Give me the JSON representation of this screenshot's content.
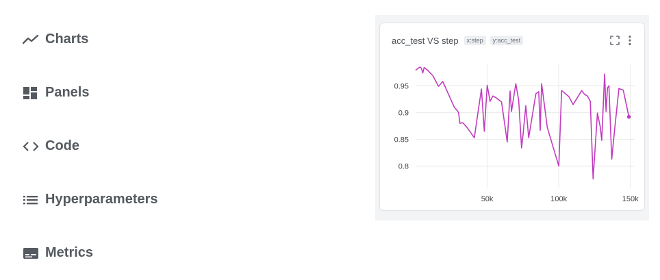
{
  "nav": {
    "items": [
      {
        "label": "Charts",
        "icon": "line-chart-icon"
      },
      {
        "label": "Panels",
        "icon": "dashboard-icon"
      },
      {
        "label": "Code",
        "icon": "code-icon"
      },
      {
        "label": "Hyperparameters",
        "icon": "list-icon"
      },
      {
        "label": "Metrics",
        "icon": "metrics-icon"
      }
    ]
  },
  "panel": {
    "title": "acc_test VS step",
    "badge_x": "x:step",
    "badge_y": "y:acc_test",
    "actions": [
      "fullscreen-icon",
      "more-vert-icon"
    ]
  },
  "colors": {
    "line": "#c13dbf",
    "grid": "#e8e8e8",
    "nav_text": "#555a60"
  },
  "chart_data": {
    "type": "line",
    "title": "acc_test VS step",
    "xlabel": "",
    "ylabel": "",
    "xlim": [
      0,
      153000
    ],
    "ylim": [
      0.76,
      0.99
    ],
    "x_ticks": [
      50000,
      100000,
      150000
    ],
    "x_tick_labels": [
      "50k",
      "100k",
      "150k"
    ],
    "y_ticks": [
      0.8,
      0.85,
      0.9,
      0.95
    ],
    "y_tick_labels": [
      "0.8",
      "0.85",
      "0.9",
      "0.95"
    ],
    "grid": true,
    "series": [
      {
        "x": [
          0,
          3000,
          4000,
          5000,
          6000,
          8000,
          12000,
          16000,
          19000,
          27000,
          29000,
          30000,
          31000,
          33000,
          36000,
          41000,
          44000,
          46000,
          48000,
          50000,
          52000,
          54000,
          56000,
          60000,
          64000,
          66000,
          67000,
          68000,
          70000,
          72000,
          74000,
          75000,
          77000,
          79000,
          84000,
          86000,
          87000,
          88000,
          92000,
          100000,
          102000,
          107000,
          110000,
          116000,
          118000,
          120000,
          122000,
          124000,
          127000,
          129000,
          130000,
          132000,
          133000,
          134000,
          135000,
          137000,
          139000,
          142000,
          145000,
          149000
        ],
        "values": [
          0.979,
          0.985,
          0.983,
          0.974,
          0.984,
          0.98,
          0.969,
          0.949,
          0.958,
          0.91,
          0.904,
          0.9,
          0.88,
          0.881,
          0.872,
          0.853,
          0.908,
          0.944,
          0.865,
          0.951,
          0.921,
          0.931,
          0.928,
          0.92,
          0.845,
          0.94,
          0.902,
          0.92,
          0.954,
          0.923,
          0.834,
          0.858,
          0.913,
          0.853,
          0.935,
          0.939,
          0.867,
          0.954,
          0.872,
          0.8,
          0.941,
          0.93,
          0.915,
          0.941,
          0.934,
          0.931,
          0.921,
          0.776,
          0.899,
          0.873,
          0.848,
          0.972,
          0.902,
          0.946,
          0.95,
          0.813,
          0.868,
          0.945,
          0.942,
          0.892
        ]
      }
    ],
    "end_marker": true
  }
}
